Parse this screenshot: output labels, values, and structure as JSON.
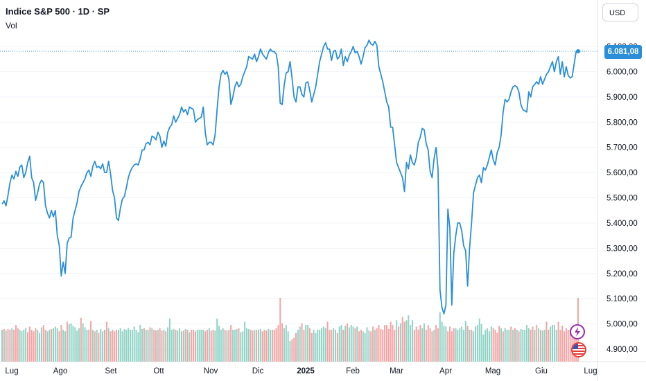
{
  "header": {
    "title": "Indice S&P 500 · 1D · SP",
    "volume_label": "Vol"
  },
  "toolbar": {
    "currency": "USD"
  },
  "price_badge": "6.081,08",
  "colors": {
    "line": "#2a8fd8",
    "vol_up": "#8fd3c5",
    "vol_down": "#f4a3a3",
    "event_purple": "#9c27b0",
    "event_red": "#e53935"
  },
  "icons": [
    "lightning-event-icon",
    "us-flag-event-icon"
  ],
  "chart_data": {
    "type": "line",
    "title": "Indice S&P 500 · 1D · SP",
    "series": [
      {
        "values": [
          5475,
          5488,
          5468,
          5510,
          5560,
          5590,
          5575,
          5605,
          5585,
          5622,
          5630,
          5580,
          5600,
          5640,
          5665,
          5580,
          5560,
          5490,
          5520,
          5555,
          5570,
          5560,
          5470,
          5440,
          5420,
          5450,
          5425,
          5450,
          5350,
          5310,
          5190,
          5245,
          5200,
          5320,
          5340,
          5345,
          5420,
          5450,
          5480,
          5525,
          5545,
          5560,
          5575,
          5600,
          5610,
          5585,
          5625,
          5645,
          5620,
          5625,
          5615,
          5635,
          5600,
          5600,
          5645,
          5595,
          5530,
          5500,
          5420,
          5410,
          5460,
          5495,
          5505,
          5540,
          5580,
          5605,
          5620,
          5630,
          5635,
          5630,
          5655,
          5690,
          5690,
          5715,
          5720,
          5710,
          5745,
          5740,
          5730,
          5760,
          5745,
          5700,
          5725,
          5705,
          5760,
          5780,
          5790,
          5825,
          5800,
          5815,
          5830,
          5860,
          5840,
          5850,
          5830,
          5860,
          5855,
          5850,
          5800,
          5810,
          5815,
          5820,
          5860,
          5760,
          5710,
          5720,
          5720,
          5710,
          5750,
          5850,
          5940,
          5990,
          6005,
          5990,
          6000,
          5970,
          5870,
          5900,
          5940,
          5960,
          5940,
          5950,
          5980,
          6000,
          6020,
          6060,
          6055,
          6050,
          6070,
          6040,
          6060,
          6090,
          6070,
          6060,
          6050,
          6075,
          6090,
          6080,
          6080,
          6070,
          6020,
          5875,
          5870,
          5945,
          5995,
          6000,
          6040,
          5975,
          5900,
          5880,
          5940,
          5940,
          5910,
          5900,
          5955,
          5960,
          5925,
          5880,
          5910,
          5940,
          5990,
          6040,
          6070,
          6100,
          6115,
          6090,
          6090,
          6045,
          6080,
          6085,
          6050,
          6060,
          6090,
          6025,
          6060,
          6040,
          6065,
          6080,
          6100,
          6075,
          6080,
          6060,
          6030,
          6060,
          6095,
          6105,
          6125,
          6110,
          6105,
          6120,
          6105,
          6020,
          5990,
          5960,
          5920,
          5880,
          5860,
          5780,
          5780,
          5710,
          5640,
          5620,
          5600,
          5580,
          5525,
          5640,
          5615,
          5670,
          5640,
          5630,
          5660,
          5720,
          5740,
          5775,
          5770,
          5715,
          5690,
          5605,
          5580,
          5655,
          5700,
          5615,
          5135,
          5065,
          5040,
          5075,
          5455,
          5380,
          5075,
          5280,
          5350,
          5400,
          5400,
          5370,
          5310,
          5290,
          5150,
          5300,
          5400,
          5520,
          5550,
          5580,
          5590,
          5560,
          5620,
          5610,
          5630,
          5660,
          5690,
          5650,
          5630,
          5680,
          5700,
          5750,
          5840,
          5890,
          5880,
          5890,
          5920,
          5940,
          5945,
          5940,
          5920,
          5870,
          5850,
          5845,
          5840,
          5920,
          5900,
          5940,
          5950,
          5960,
          5950,
          5980,
          5950,
          5970,
          5990,
          6000,
          6020,
          6040,
          6000,
          6040,
          6060,
          5990,
          6040,
          5980,
          6020,
          5985,
          5975,
          5980,
          6030,
          6080,
          6081
        ]
      }
    ],
    "volume": {
      "values": [
        40,
        41,
        39,
        41,
        40,
        42,
        40,
        46,
        42,
        40,
        38,
        40,
        42,
        37,
        44,
        40,
        38,
        42,
        40,
        36,
        43,
        46,
        40,
        38,
        40,
        41,
        42,
        44,
        42,
        38,
        46,
        40,
        38,
        50,
        47,
        48,
        45,
        43,
        39,
        42,
        55,
        48,
        43,
        40,
        40,
        51,
        40,
        38,
        40,
        36,
        41,
        38,
        40,
        50,
        42,
        38,
        40,
        38,
        40,
        40,
        42,
        38,
        41,
        40,
        42,
        40,
        40,
        44,
        40,
        37,
        46,
        41,
        42,
        40,
        40,
        43,
        42,
        40,
        39,
        40,
        42,
        39,
        40,
        38,
        43,
        54,
        40,
        41,
        40,
        39,
        42,
        38,
        39,
        41,
        40,
        37,
        40,
        40,
        38,
        40,
        40,
        40,
        40,
        38,
        40,
        42,
        39,
        40,
        39,
        54,
        45,
        40,
        42,
        40,
        39,
        40,
        46,
        40,
        40,
        41,
        42,
        37,
        38,
        50,
        42,
        41,
        40,
        39,
        40,
        40,
        40,
        41,
        38,
        40,
        39,
        41,
        40,
        40,
        40,
        42,
        46,
        80,
        48,
        42,
        46,
        38,
        26,
        28,
        30,
        36,
        40,
        44,
        48,
        40,
        46,
        46,
        42,
        36,
        40,
        36,
        40,
        40,
        42,
        44,
        42,
        50,
        40,
        40,
        42,
        40,
        36,
        44,
        46,
        40,
        45,
        48,
        43,
        46,
        44,
        42,
        44,
        38,
        40,
        38,
        36,
        43,
        39,
        38,
        44,
        40,
        42,
        46,
        41,
        40,
        46,
        46,
        41,
        50,
        46,
        40,
        52,
        44,
        48,
        56,
        50,
        52,
        58,
        46,
        52,
        40,
        44,
        40,
        46,
        42,
        48,
        40,
        46,
        42,
        38,
        40,
        46,
        42,
        62,
        50,
        45,
        44,
        38,
        44,
        38,
        42,
        42,
        40,
        42,
        44,
        40,
        51,
        45,
        40,
        40,
        38,
        44,
        46,
        54,
        47,
        34,
        40,
        42,
        38,
        44,
        42,
        40,
        36,
        45,
        42,
        38,
        42,
        40,
        40,
        44,
        40,
        42,
        40,
        38,
        41,
        40,
        40,
        46,
        42,
        40,
        44,
        40,
        46,
        42,
        40,
        39,
        40,
        50,
        40,
        44,
        46,
        46,
        40,
        50,
        40,
        45,
        38,
        42,
        40,
        40,
        30,
        44,
        42,
        80,
        40,
        40,
        38
      ],
      "up": [
        1,
        0,
        1,
        0,
        0,
        1,
        0,
        0,
        0,
        1,
        1,
        1,
        1,
        0,
        0,
        0,
        0,
        0,
        1,
        1,
        1,
        0,
        0,
        1,
        1,
        0,
        1,
        1,
        1,
        0,
        0,
        1,
        1,
        0,
        1,
        1,
        1,
        1,
        1,
        1,
        0,
        1,
        1,
        1,
        0,
        0,
        1,
        0,
        1,
        0,
        1,
        1,
        0,
        0,
        1,
        0,
        0,
        0,
        0,
        1,
        1,
        1,
        1,
        1,
        1,
        1,
        1,
        1,
        1,
        1,
        1,
        1,
        0,
        1,
        1,
        0,
        1,
        0,
        0,
        1,
        0,
        0,
        1,
        0,
        1,
        1,
        1,
        1,
        0,
        1,
        1,
        1,
        0,
        1,
        0,
        1,
        0,
        0,
        0,
        1,
        1,
        1,
        1,
        0,
        0,
        1,
        0,
        0,
        1,
        1,
        1,
        1,
        1,
        0,
        1,
        0,
        0,
        1,
        1,
        1,
        0,
        1,
        1,
        1,
        1,
        1,
        0,
        0,
        1,
        0,
        1,
        1,
        0,
        0,
        0,
        1,
        1,
        0,
        0,
        0,
        0,
        0,
        0,
        1,
        1,
        1,
        1,
        0,
        0,
        0,
        1,
        1,
        0,
        0,
        1,
        1,
        0,
        0,
        1,
        1,
        1,
        1,
        1,
        1,
        1,
        0,
        0,
        0,
        1,
        1,
        0,
        1,
        1,
        0,
        1,
        0,
        1,
        1,
        1,
        0,
        1,
        0,
        0,
        1,
        1,
        1,
        1,
        0,
        0,
        1,
        0,
        0,
        0,
        0,
        0,
        0,
        0,
        0,
        0,
        0,
        1,
        0,
        1,
        0,
        0,
        1,
        1,
        1,
        1,
        0,
        0,
        0,
        0,
        1,
        1,
        0,
        0,
        0,
        0,
        1,
        0,
        0,
        1,
        1,
        1,
        1,
        0,
        0,
        0,
        0,
        1,
        1,
        1,
        1,
        1,
        1,
        0,
        1,
        0,
        1,
        1,
        1,
        1,
        1,
        1,
        1,
        1,
        1,
        1,
        0,
        0,
        0,
        0,
        1,
        0,
        1,
        1,
        1,
        0,
        1,
        0,
        1,
        0,
        1,
        1,
        1,
        1,
        1,
        0,
        0,
        1,
        0,
        1,
        0,
        1,
        1,
        0,
        0,
        1,
        1,
        1,
        1
      ]
    },
    "y_ticks": [
      "6.100,00",
      "6.000,00",
      "5.900,00",
      "5.800,00",
      "5.700,00",
      "5.600,00",
      "5.500,00",
      "5.400,00",
      "5.300,00",
      "5.200,00",
      "5.100,00",
      "5.000,00",
      "4.900,00"
    ],
    "y_tick_values": [
      6100,
      6000,
      5900,
      5800,
      5700,
      5600,
      5500,
      5400,
      5300,
      5200,
      5100,
      5000,
      4900
    ],
    "x_labels": [
      {
        "label": "Lug",
        "bold": false
      },
      {
        "label": "Ago",
        "bold": false
      },
      {
        "label": "Set",
        "bold": false
      },
      {
        "label": "Ott",
        "bold": false
      },
      {
        "label": "Nov",
        "bold": false
      },
      {
        "label": "Dic",
        "bold": false
      },
      {
        "label": "2025",
        "bold": true
      },
      {
        "label": "Feb",
        "bold": false
      },
      {
        "label": "Mar",
        "bold": false
      },
      {
        "label": "Apr",
        "bold": false
      },
      {
        "label": "Mag",
        "bold": false
      },
      {
        "label": "Giu",
        "bold": false
      },
      {
        "label": "Lug",
        "bold": false
      }
    ],
    "last_value": 6081.08,
    "grid": true
  }
}
